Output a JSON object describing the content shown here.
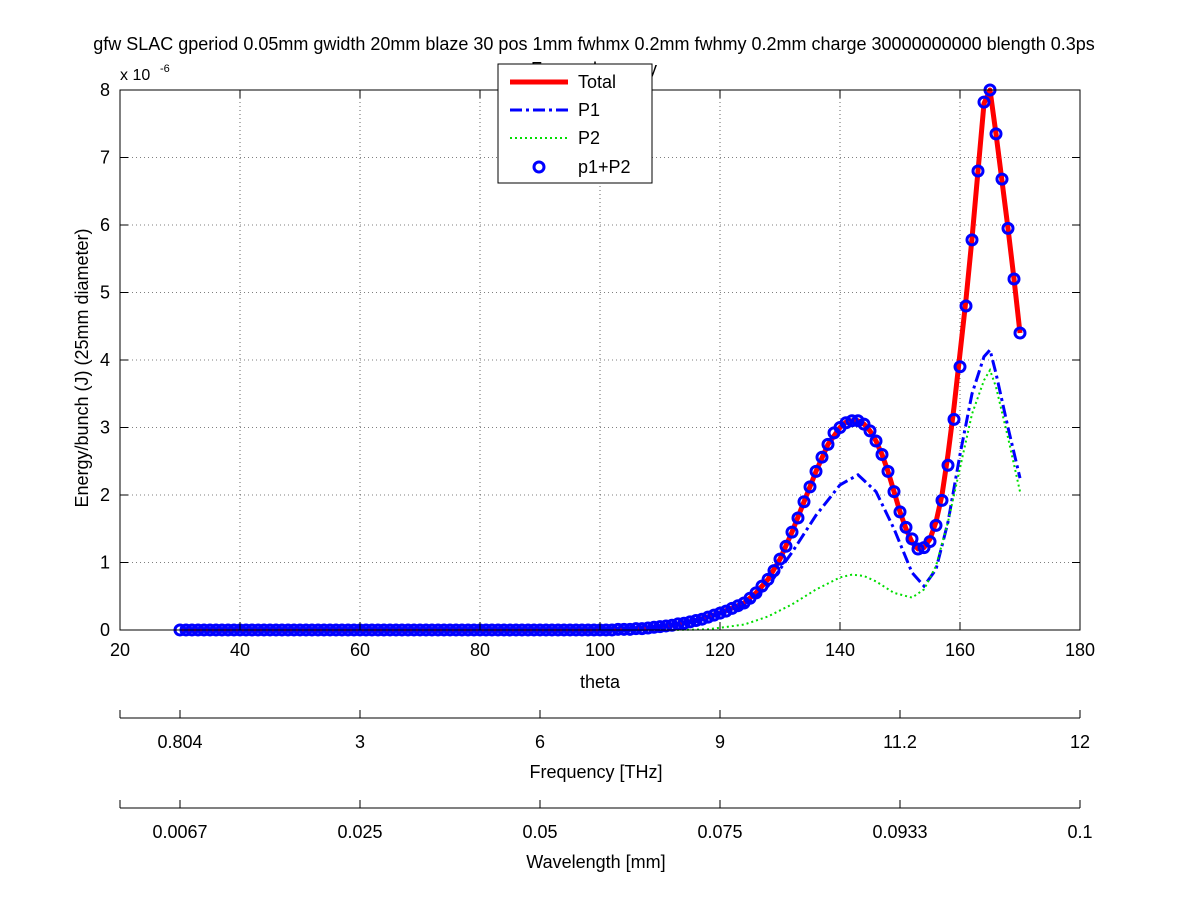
{
  "chart_data": {
    "type": "line",
    "title": "gfw SLAC gperiod 0.05mm gwidth 20mm blaze 30 pos 1mm fwhmx 0.2mm fwhmy 0.2mm charge 30000000000 blength 0.3ps",
    "subtitle": "Forward energy",
    "xlabel": "theta",
    "ylabel": "Energy/bunch (J) (25mm diameter)",
    "y_exponent": "x 10",
    "y_exponent_power": "-6",
    "xlim": [
      20,
      180
    ],
    "ylim": [
      0,
      8
    ],
    "x_ticks": [
      "20",
      "40",
      "60",
      "80",
      "100",
      "120",
      "140",
      "160",
      "180"
    ],
    "y_ticks": [
      "0",
      "1",
      "2",
      "3",
      "4",
      "5",
      "6",
      "7",
      "8"
    ],
    "grid": true,
    "legend_position": "top-center",
    "legend": [
      "Total",
      "P1",
      "P2",
      "p1+P2"
    ],
    "colors": {
      "total": "#ff0000",
      "p1": "#0000ff",
      "p2": "#00dd00",
      "sum": "#0000ff"
    },
    "series": [
      {
        "name": "Total",
        "style": "solid-thick",
        "x": [
          30,
          100,
          104,
          108,
          112,
          116,
          120,
          124,
          126,
          128,
          130,
          132,
          134,
          136,
          138,
          140,
          141,
          142,
          143,
          144,
          145,
          146,
          147,
          148,
          149,
          150,
          151,
          152,
          153,
          154,
          155,
          156,
          157,
          158,
          159,
          160,
          161,
          162,
          163,
          164,
          165,
          166,
          167,
          168,
          169,
          170
        ],
        "y": [
          0,
          0,
          0.01,
          0.03,
          0.07,
          0.14,
          0.25,
          0.4,
          0.55,
          0.75,
          1.05,
          1.45,
          1.9,
          2.35,
          2.75,
          3.0,
          3.08,
          3.1,
          3.1,
          3.05,
          2.95,
          2.8,
          2.6,
          2.35,
          2.05,
          1.75,
          1.5,
          1.3,
          1.2,
          1.22,
          1.35,
          1.6,
          2.0,
          2.6,
          3.3,
          4.1,
          4.9,
          5.8,
          6.8,
          7.8,
          8.0,
          7.35,
          6.65,
          5.95,
          5.2,
          4.4
        ]
      },
      {
        "name": "P1",
        "style": "dash-dot",
        "x": [
          100,
          108,
          116,
          124,
          128,
          132,
          136,
          140,
          143,
          146,
          149,
          152,
          154,
          156,
          158,
          160,
          162,
          164,
          165,
          166,
          168,
          170
        ],
        "y": [
          0,
          0.03,
          0.13,
          0.35,
          0.65,
          1.15,
          1.7,
          2.15,
          2.3,
          2.05,
          1.5,
          0.85,
          0.65,
          0.9,
          1.6,
          2.6,
          3.5,
          4.05,
          4.15,
          3.8,
          3.0,
          2.25
        ]
      },
      {
        "name": "P2",
        "style": "dotted",
        "x": [
          112,
          118,
          124,
          128,
          132,
          136,
          140,
          142,
          144,
          146,
          149,
          152,
          154,
          156,
          158,
          160,
          162,
          164,
          165,
          166,
          168,
          170
        ],
        "y": [
          0,
          0.01,
          0.08,
          0.2,
          0.38,
          0.6,
          0.78,
          0.82,
          0.8,
          0.72,
          0.55,
          0.48,
          0.6,
          0.95,
          1.6,
          2.4,
          3.2,
          3.7,
          3.85,
          3.6,
          2.85,
          2.05
        ]
      },
      {
        "name": "p1+P2",
        "style": "circle-markers",
        "x": [
          30,
          31,
          32,
          33,
          34,
          35,
          36,
          37,
          38,
          39,
          40,
          41,
          42,
          43,
          44,
          45,
          46,
          47,
          48,
          49,
          50,
          51,
          52,
          53,
          54,
          55,
          56,
          57,
          58,
          59,
          60,
          61,
          62,
          63,
          64,
          65,
          66,
          67,
          68,
          69,
          70,
          71,
          72,
          73,
          74,
          75,
          76,
          77,
          78,
          79,
          80,
          81,
          82,
          83,
          84,
          85,
          86,
          87,
          88,
          89,
          90,
          91,
          92,
          93,
          94,
          95,
          96,
          97,
          98,
          99,
          100,
          101,
          102,
          103,
          104,
          105,
          106,
          107,
          108,
          109,
          110,
          111,
          112,
          113,
          114,
          115,
          116,
          117,
          118,
          119,
          120,
          121,
          122,
          123,
          124,
          125,
          126,
          127,
          128,
          129,
          130,
          131,
          132,
          133,
          134,
          135,
          136,
          137,
          138,
          139,
          140,
          141,
          142,
          143,
          144,
          145,
          146,
          147,
          148,
          149,
          150,
          151,
          152,
          153,
          154,
          155,
          156,
          157,
          158,
          159,
          160,
          161,
          162,
          163,
          164,
          165,
          166,
          167,
          168,
          169,
          170
        ],
        "y": [
          0,
          0,
          0,
          0,
          0,
          0,
          0,
          0,
          0,
          0,
          0,
          0,
          0,
          0,
          0,
          0,
          0,
          0,
          0,
          0,
          0,
          0,
          0,
          0,
          0,
          0,
          0,
          0,
          0,
          0,
          0,
          0,
          0,
          0,
          0,
          0,
          0,
          0,
          0,
          0,
          0,
          0,
          0,
          0,
          0,
          0,
          0,
          0,
          0,
          0,
          0,
          0,
          0,
          0,
          0,
          0,
          0,
          0,
          0,
          0,
          0,
          0,
          0,
          0,
          0,
          0,
          0,
          0,
          0,
          0,
          0,
          0,
          0,
          0.01,
          0.01,
          0.01,
          0.02,
          0.02,
          0.03,
          0.04,
          0.05,
          0.06,
          0.07,
          0.09,
          0.1,
          0.12,
          0.14,
          0.16,
          0.19,
          0.22,
          0.25,
          0.28,
          0.32,
          0.36,
          0.4,
          0.47,
          0.55,
          0.65,
          0.75,
          0.88,
          1.05,
          1.24,
          1.45,
          1.66,
          1.9,
          2.12,
          2.35,
          2.56,
          2.75,
          2.92,
          3.0,
          3.07,
          3.1,
          3.1,
          3.05,
          2.95,
          2.8,
          2.6,
          2.35,
          2.05,
          1.75,
          1.52,
          1.35,
          1.2,
          1.22,
          1.31,
          1.55,
          1.92,
          2.44,
          3.12,
          3.9,
          4.8,
          5.78,
          6.8,
          7.82,
          8.0,
          7.35,
          6.68,
          5.95,
          5.2,
          4.4
        ]
      }
    ],
    "secondary_axes": [
      {
        "label": "Frequency [THz]",
        "tick_labels": [
          "0.804",
          "3",
          "6",
          "9",
          "11.2",
          "12"
        ],
        "tick_theta": [
          30,
          60,
          90,
          120,
          150,
          180
        ]
      },
      {
        "label": "Wavelength [mm]",
        "tick_labels": [
          "0.0067",
          "0.025",
          "0.05",
          "0.075",
          "0.0933",
          "0.1"
        ],
        "tick_theta": [
          30,
          60,
          90,
          120,
          150,
          180
        ]
      }
    ]
  }
}
